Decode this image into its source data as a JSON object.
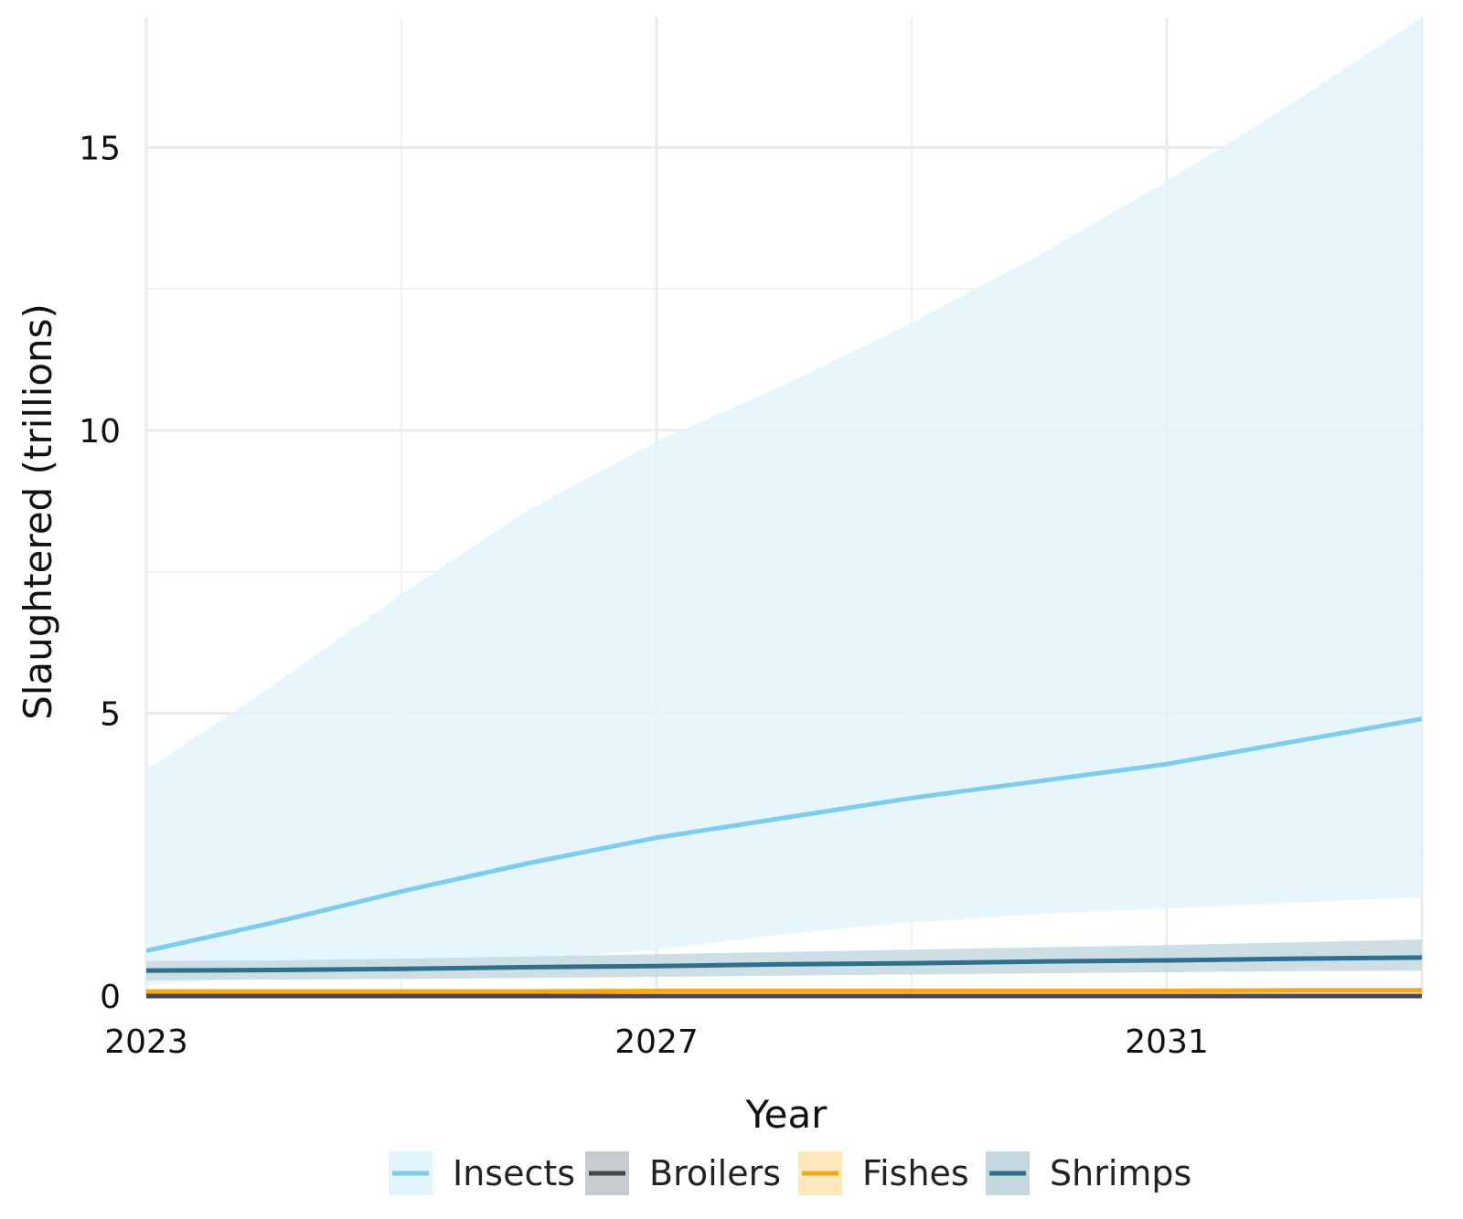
{
  "chart_data": {
    "type": "line",
    "title": "",
    "xlabel": "Year",
    "ylabel": "Slaughtered (trillions)",
    "xlim": [
      2023,
      2033
    ],
    "ylim": [
      0,
      17.3
    ],
    "x_ticks": [
      2023,
      2027,
      2031
    ],
    "x_tick_labels": [
      "2023",
      "2027",
      "2031"
    ],
    "y_ticks": [
      0,
      5,
      10,
      15
    ],
    "y_tick_labels": [
      "0",
      "5",
      "10",
      "15"
    ],
    "y_minor_gridlines": [
      2.5,
      7.5,
      12.5
    ],
    "x_minor_gridlines": [
      2025,
      2029
    ],
    "grid": true,
    "legend_position": "bottom",
    "x": [
      2023,
      2024,
      2025,
      2026,
      2027,
      2028,
      2029,
      2030,
      2031,
      2032,
      2033
    ],
    "series": [
      {
        "name": "Insects",
        "color": "#7fcdee",
        "band_color": "#e2f4fb",
        "values": [
          0.8,
          1.3,
          1.85,
          2.35,
          2.8,
          3.15,
          3.5,
          3.8,
          4.1,
          4.5,
          4.9
        ],
        "lower": [
          0.2,
          0.35,
          0.5,
          0.65,
          0.82,
          1.1,
          1.3,
          1.45,
          1.55,
          1.65,
          1.75
        ],
        "upper": [
          4.0,
          5.5,
          7.1,
          8.6,
          9.8,
          10.8,
          11.9,
          13.1,
          14.4,
          15.8,
          17.3
        ]
      },
      {
        "name": "Broilers",
        "color": "#444a50",
        "band_color": "#c9ccce",
        "values": [
          0.0,
          0.0,
          0.0,
          0.0,
          0.0,
          0.0,
          0.0,
          0.0,
          0.0,
          0.0,
          0.0
        ],
        "lower": [
          0.0,
          0.0,
          0.0,
          0.0,
          0.0,
          0.0,
          0.0,
          0.0,
          0.0,
          0.0,
          0.0
        ],
        "upper": [
          0.02,
          0.02,
          0.02,
          0.02,
          0.02,
          0.02,
          0.02,
          0.02,
          0.02,
          0.02,
          0.02
        ]
      },
      {
        "name": "Fishes",
        "color": "#f5a81c",
        "band_color": "#fde8bb",
        "values": [
          0.08,
          0.08,
          0.08,
          0.08,
          0.09,
          0.09,
          0.09,
          0.09,
          0.09,
          0.1,
          0.1
        ],
        "lower": [
          0.05,
          0.05,
          0.05,
          0.05,
          0.05,
          0.05,
          0.05,
          0.05,
          0.05,
          0.05,
          0.05
        ],
        "upper": [
          0.11,
          0.11,
          0.11,
          0.12,
          0.12,
          0.12,
          0.13,
          0.13,
          0.13,
          0.14,
          0.14
        ]
      },
      {
        "name": "Shrimps",
        "color": "#2f6e8c",
        "band_color": "#c5d8e0",
        "values": [
          0.45,
          0.46,
          0.48,
          0.51,
          0.53,
          0.56,
          0.58,
          0.61,
          0.63,
          0.66,
          0.68
        ],
        "lower": [
          0.28,
          0.29,
          0.3,
          0.32,
          0.34,
          0.36,
          0.38,
          0.4,
          0.42,
          0.44,
          0.45
        ],
        "upper": [
          0.62,
          0.63,
          0.66,
          0.7,
          0.74,
          0.78,
          0.82,
          0.86,
          0.9,
          0.95,
          1.0
        ]
      }
    ]
  }
}
